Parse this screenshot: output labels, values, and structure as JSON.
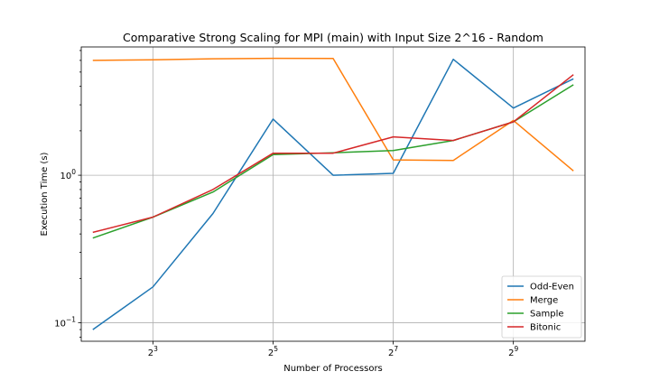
{
  "chart_data": {
    "type": "line",
    "title": "Comparative Strong Scaling for MPI (main) with Input Size 2^16 - Random",
    "xlabel": "Number of Processors",
    "ylabel": "Execution Time (s)",
    "x_scale": "log2",
    "y_scale": "log10",
    "x": [
      4,
      8,
      16,
      32,
      64,
      128,
      256,
      512,
      1024
    ],
    "xlim": [
      3.5,
      1170
    ],
    "ylim": [
      0.075,
      7.4
    ],
    "xticks": [
      {
        "value": 8,
        "base": "2",
        "exp": "3"
      },
      {
        "value": 32,
        "base": "2",
        "exp": "5"
      },
      {
        "value": 128,
        "base": "2",
        "exp": "7"
      },
      {
        "value": 512,
        "base": "2",
        "exp": "9"
      }
    ],
    "yticks": [
      {
        "value": 0.1,
        "base": "10",
        "exp": "−1"
      },
      {
        "value": 1,
        "base": "10",
        "exp": "0"
      }
    ],
    "grid": true,
    "legend_position": "lower right",
    "series": [
      {
        "name": "Odd-Even",
        "color": "#1f77b4",
        "values": [
          0.09,
          0.175,
          0.55,
          2.4,
          1.0,
          1.03,
          6.1,
          2.85,
          4.5
        ]
      },
      {
        "name": "Merge",
        "color": "#ff7f0e",
        "values": [
          6.0,
          6.05,
          6.15,
          6.2,
          6.18,
          1.27,
          1.26,
          2.35,
          1.07
        ]
      },
      {
        "name": "Sample",
        "color": "#2ca02c",
        "values": [
          0.375,
          0.52,
          0.77,
          1.38,
          1.42,
          1.47,
          1.72,
          2.3,
          4.1
        ]
      },
      {
        "name": "Bitonic",
        "color": "#d62728",
        "values": [
          0.41,
          0.52,
          0.8,
          1.41,
          1.41,
          1.82,
          1.72,
          2.3,
          4.8
        ]
      }
    ]
  }
}
